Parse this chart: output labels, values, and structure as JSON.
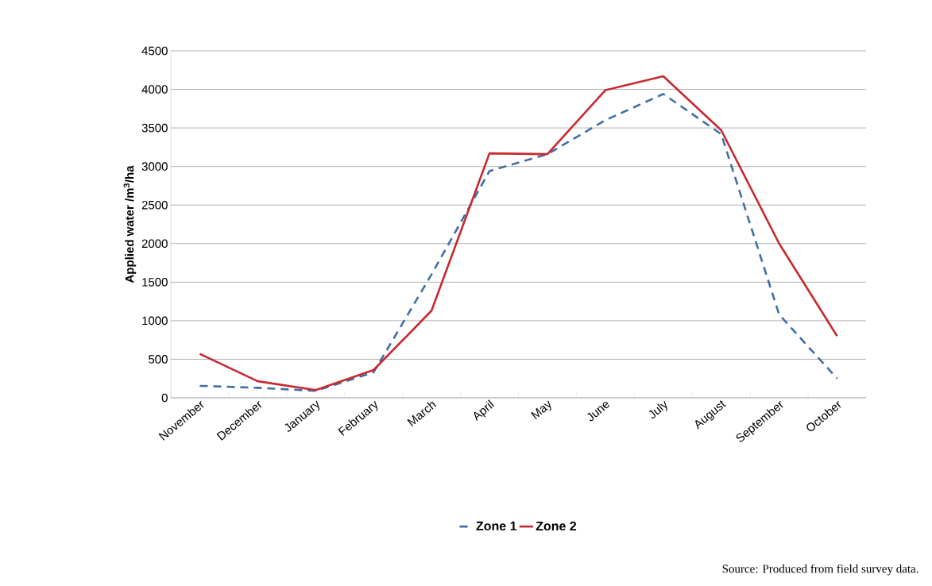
{
  "chart_data": {
    "type": "line",
    "categories": [
      "November",
      "December",
      "January",
      "February",
      "March",
      "April",
      "May",
      "June",
      "July",
      "August",
      "September",
      "October"
    ],
    "ylabel": "Applied water /m$^{3}$/ha",
    "ylim": [
      0,
      4500
    ],
    "yticks": [
      0,
      500,
      1000,
      1500,
      2000,
      2500,
      3000,
      3500,
      4000,
      4500
    ],
    "grid": "y",
    "legend": "bottom",
    "series": [
      {
        "name": "Zone 1",
        "color": "#3f6fa8",
        "line_style": "dashed",
        "values": [
          155,
          130,
          90,
          330,
          1600,
          2940,
          3160,
          3600,
          3940,
          3420,
          1080,
          250
        ]
      },
      {
        "name": "Zone 2",
        "color": "#c8282f",
        "line_style": "solid",
        "values": [
          570,
          215,
          100,
          360,
          1130,
          3170,
          3160,
          3990,
          4170,
          3470,
          2000,
          800
        ]
      }
    ],
    "annotations": [
      "Source: Produced from field survey data."
    ]
  }
}
